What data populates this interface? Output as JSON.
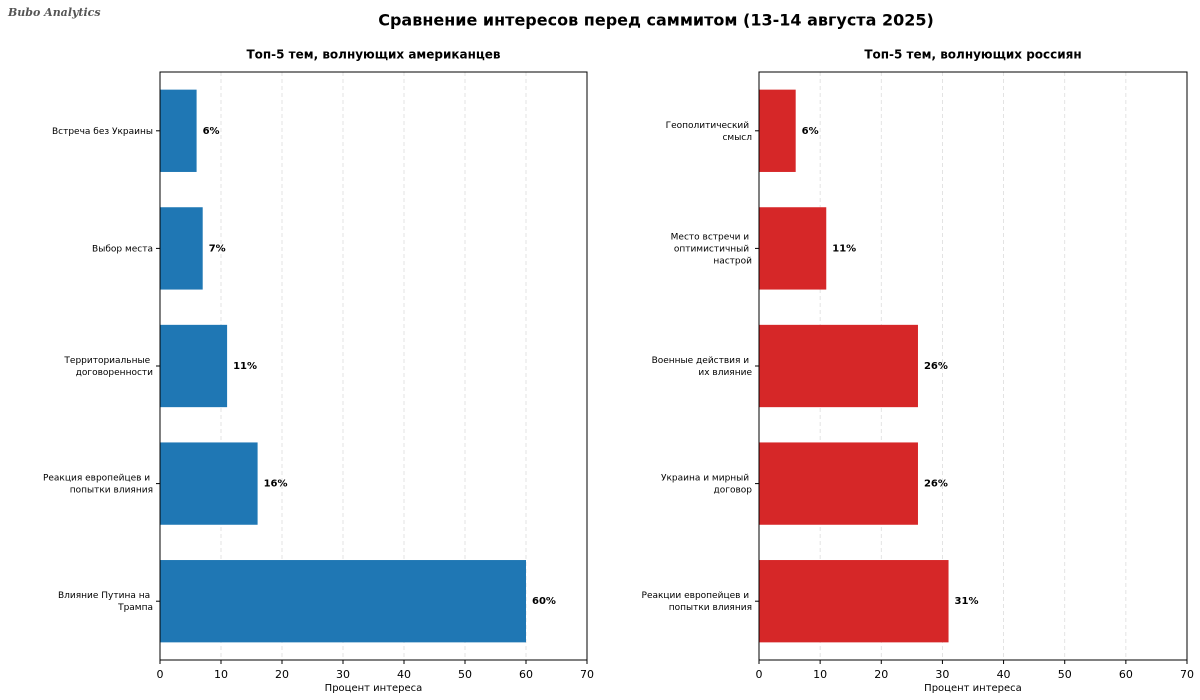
{
  "watermark": "Bubo Analytics",
  "title": "Сравнение интересов перед саммитом (13-14 августа 2025)",
  "chart_data": [
    {
      "type": "barh",
      "title": "Топ-5 тем, волнующих американцев",
      "categories": [
        "Встреча без Украины",
        "Выбор места",
        "Территориальные договоренности",
        "Реакция европейцев и попытки влияния",
        "Влияние Путина на Трампа"
      ],
      "values": [
        6,
        7,
        11,
        16,
        60
      ],
      "value_labels": [
        "6%",
        "7%",
        "11%",
        "16%",
        "60%"
      ],
      "color": "#1f77b4",
      "xlabel": "Процент интереса",
      "xlim": [
        0,
        70
      ],
      "xticks": [
        0,
        10,
        20,
        30,
        40,
        50,
        60,
        70
      ],
      "grid": true
    },
    {
      "type": "barh",
      "title": "Топ-5 тем, волнующих россиян",
      "categories": [
        "Геополитический смысл",
        "Место встречи и оптимистичный настрой",
        "Военные действия и их влияние",
        "Украина и мирный договор",
        "Реакции европейцев и попытки влияния"
      ],
      "values": [
        6,
        11,
        26,
        26,
        31
      ],
      "value_labels": [
        "6%",
        "11%",
        "26%",
        "26%",
        "31%"
      ],
      "color": "#d62728",
      "xlabel": "Процент интереса",
      "xlim": [
        0,
        70
      ],
      "xticks": [
        0,
        10,
        20,
        30,
        40,
        50,
        60,
        70
      ],
      "grid": true
    }
  ]
}
